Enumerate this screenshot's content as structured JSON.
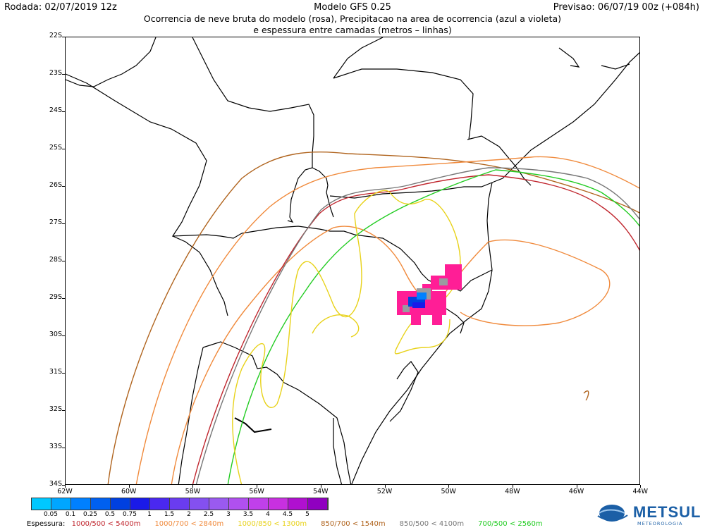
{
  "header": {
    "left": "Rodada: 02/07/2019 12z",
    "center": "Modelo GFS 0.25",
    "right": "Previsao: 06/07/19 00z (+084h)",
    "subtitle_1": "Ocorrencia de neve bruta do modelo (rosa), Precipitacao na area de ocorrencia (azul a violeta)",
    "subtitle_2": "e espessura entre camadas (metros – linhas)"
  },
  "latitude_labels": [
    "22S",
    "23S",
    "24S",
    "25S",
    "26S",
    "27S",
    "28S",
    "29S",
    "30S",
    "31S",
    "32S",
    "33S",
    "34S"
  ],
  "longitude_labels": [
    "62W",
    "60W",
    "58W",
    "56W",
    "54W",
    "52W",
    "50W",
    "48W",
    "46W",
    "44W"
  ],
  "colorbar": {
    "labels": [
      "0.05",
      "0.1",
      "0.25",
      "0.5",
      "0.75",
      "1",
      "1.5",
      "2",
      "2.5",
      "3",
      "3.5",
      "4",
      "4.5",
      "5"
    ],
    "colors": [
      "#00c8ff",
      "#00a6ff",
      "#0080ff",
      "#0060f0",
      "#0040e0",
      "#1a1ae8",
      "#4a28f0",
      "#6a3cf0",
      "#8450f0",
      "#9a5af0",
      "#b050ef",
      "#c040ea",
      "#c830e0",
      "#b010d0",
      "#9000c0"
    ]
  },
  "legend": {
    "label": "Espessura:",
    "items": [
      {
        "text": "1000/500 < 5400m",
        "color": "#c0262e"
      },
      {
        "text": "1000/700 < 2840m",
        "color": "#f08a3c"
      },
      {
        "text": "1000/850 < 1300m",
        "color": "#e8d21a"
      },
      {
        "text": "850/700 < 1540m",
        "color": "#b0641e"
      },
      {
        "text": "850/500 < 4100m",
        "color": "#777777"
      },
      {
        "text": "700/500 < 2560m",
        "color": "#22cc22"
      }
    ]
  },
  "logo": {
    "name": "METSUL",
    "tagline": "METEOROLOGIA"
  }
}
